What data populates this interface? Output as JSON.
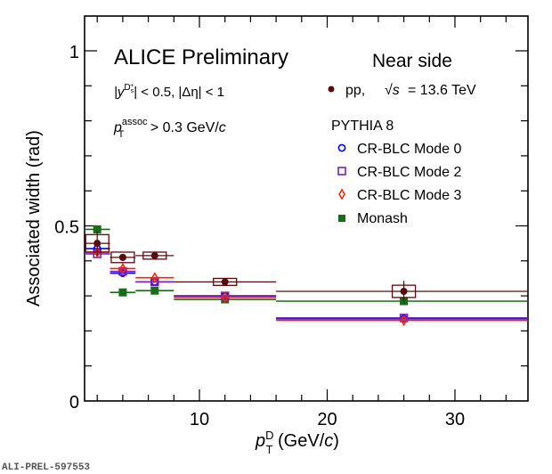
{
  "chart_data": {
    "type": "scatter",
    "title": "ALICE Preliminary",
    "subtitle": "Near side",
    "annotations": {
      "rapidity_cut": "|y^{Ds+}| < 0.5, |Δη| < 1",
      "rapidity_prefix": "|y",
      "rapidity_sup": "D",
      "rapidity_sup_sub": "s",
      "rapidity_sup_sup": "+",
      "rapidity_rest": "| < 0.5, |Δη| < 1",
      "assoc_p": "p",
      "assoc_sub": "T",
      "assoc_sup": "assoc",
      "assoc_rest": " > 0.3 GeV/",
      "assoc_unit_c": "c",
      "model_group": "PYTHIA 8",
      "figure_id": "ALI-PREL-597553"
    },
    "xlabel": "p_T^D (GeV/c)",
    "xlabel_parts": {
      "p": "p",
      "sub": "T",
      "sup": "D",
      "rest": " (GeV/",
      "c": "c",
      "close": ")"
    },
    "ylabel": "Associated width (rad)",
    "xlim": [
      1,
      36
    ],
    "ylim": [
      0,
      1.1
    ],
    "xticks": [
      10,
      20,
      30
    ],
    "yticks": [
      0,
      0.5,
      1
    ],
    "ytick_labels": [
      "0",
      "0.5",
      "1"
    ],
    "xtick_labels": [
      "10",
      "20",
      "30"
    ],
    "grid": false,
    "legend_placement": "top-right",
    "bins": [
      [
        1,
        3
      ],
      [
        3,
        5
      ],
      [
        5,
        8
      ],
      [
        8,
        16
      ],
      [
        16,
        36
      ]
    ],
    "x": [
      2,
      4,
      6.5,
      12,
      26
    ],
    "series": [
      {
        "name": "pp, √s = 13.6 TeV",
        "label_main": "pp,",
        "label_energy": "= 13.6 TeV",
        "color": "#5a0a0a",
        "marker": "filled-circle",
        "values": [
          0.45,
          0.41,
          0.415,
          0.34,
          0.313
        ],
        "stat_err": [
          0.035,
          0.01,
          0.008,
          0.006,
          0.03
        ],
        "syst_err": [
          0.05,
          0.03,
          0.02,
          0.02,
          0.035
        ]
      },
      {
        "name": "CR-BLC Mode 0",
        "color": "#0000ee",
        "marker": "open-circle",
        "values": [
          0.435,
          0.365,
          0.34,
          0.3,
          0.235
        ]
      },
      {
        "name": "CR-BLC Mode 2",
        "color": "#7722bb",
        "marker": "open-square",
        "values": [
          0.42,
          0.37,
          0.34,
          0.3,
          0.237
        ]
      },
      {
        "name": "CR-BLC Mode 3",
        "color": "#ff2200",
        "marker": "open-diamond",
        "values": [
          0.425,
          0.378,
          0.352,
          0.296,
          0.23
        ]
      },
      {
        "name": "Monash",
        "color": "#1a6b1a",
        "marker": "filled-square",
        "values": [
          0.49,
          0.31,
          0.315,
          0.29,
          0.285
        ]
      }
    ]
  }
}
